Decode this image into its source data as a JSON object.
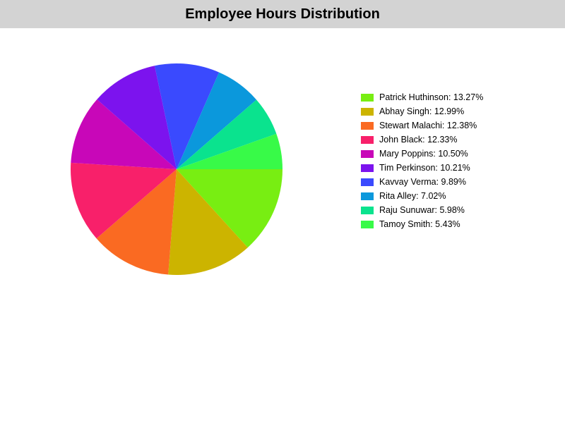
{
  "header": {
    "title": "Employee Hours Distribution"
  },
  "chart_data": {
    "type": "pie",
    "title": "Employee Hours Distribution",
    "legend_position": "right",
    "slices": [
      {
        "name": "Patrick Huthinson",
        "value": 13.27,
        "label": "Patrick Huthinson: 13.27%",
        "color": "#78ee12"
      },
      {
        "name": "Abhay Singh",
        "value": 12.99,
        "label": "Abhay Singh: 12.99%",
        "color": "#ccb400"
      },
      {
        "name": "Stewart Malachi",
        "value": 12.38,
        "label": "Stewart Malachi: 12.38%",
        "color": "#fa6a22"
      },
      {
        "name": "John Black",
        "value": 12.33,
        "label": "John Black: 12.33%",
        "color": "#f8206a"
      },
      {
        "name": "Mary Poppins",
        "value": 10.5,
        "label": "Mary Poppins: 10.50%",
        "color": "#c807b8"
      },
      {
        "name": "Tim Perkinson",
        "value": 10.21,
        "label": "Tim Perkinson: 10.21%",
        "color": "#7c13ee"
      },
      {
        "name": "Kavvay Verma",
        "value": 9.89,
        "label": "Kavvay Verma: 9.89%",
        "color": "#3a4afe"
      },
      {
        "name": "Rita Alley",
        "value": 7.02,
        "label": "Rita Alley: 7.02%",
        "color": "#0b98dc"
      },
      {
        "name": "Raju Sunuwar",
        "value": 5.98,
        "label": "Raju Sunuwar: 5.98%",
        "color": "#0ae38e"
      },
      {
        "name": "Tamoy Smith",
        "value": 5.43,
        "label": "Tamoy Smith: 5.43%",
        "color": "#38fa48"
      }
    ]
  }
}
